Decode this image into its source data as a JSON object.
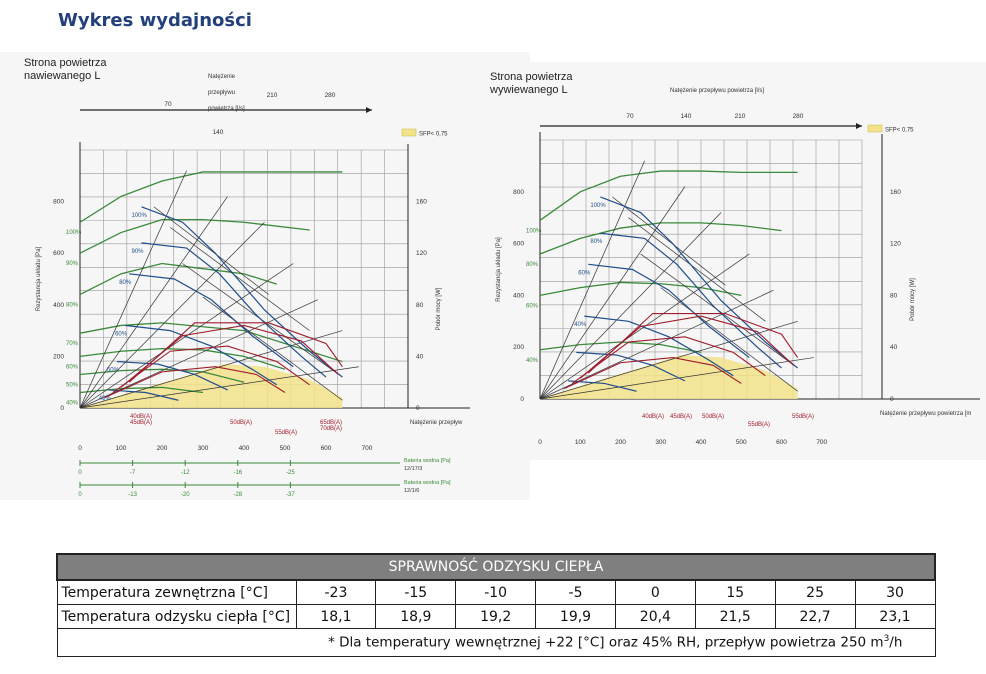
{
  "page_title": "Wykres wydajności",
  "colors": {
    "accent_heading": "#23407a",
    "green": "#3a8a3a",
    "blue": "#1f4e8c",
    "red": "#a01c2c",
    "dark": "#333333",
    "sfp_fill": "#f2e28a",
    "table_head_bg": "#7f7f7f"
  },
  "chart_data": [
    {
      "type": "line",
      "title_lines": [
        "Strona powietrza",
        "nawiewanego L"
      ],
      "top_axis": {
        "label_lines": [
          "Natężenie",
          "przepływu",
          "powietrza [l/s]"
        ],
        "ticks": [
          "70",
          "140",
          "210",
          "280"
        ]
      },
      "legend_sfp": "SFP< 0,75",
      "ylabel": "Rezystancja układu [Pa]",
      "y_ticks": [
        "0",
        "200",
        "400",
        "600",
        "800"
      ],
      "ylim": [
        0,
        1000
      ],
      "y2label": "Pobór mocy [W]",
      "y2_ticks": [
        "0",
        "40",
        "80",
        "120",
        "160"
      ],
      "xlabel": "Natężenie przepływ",
      "xlim": [
        0,
        800
      ],
      "x_ticks": [
        "0",
        "100",
        "200",
        "300",
        "400",
        "500",
        "600",
        "700"
      ],
      "green_labels": [
        "100%",
        "90%",
        "80%",
        "70%",
        "60%",
        "50%",
        "40%"
      ],
      "blue_labels": [
        "100%",
        "90%",
        "80%",
        "60%",
        "50%",
        "40%"
      ],
      "db_labels": [
        "40dB(A)",
        "45dB(A)",
        "50dB(A)",
        "55dB(A)",
        "65dB(A)",
        "70dB(A)"
      ],
      "heater_scales": [
        {
          "label": "Bateria wodna [Pa] 12/17/3",
          "ticks": [
            "0",
            "-7",
            "-12",
            "-16",
            "-25"
          ]
        },
        {
          "label": "Bateria wodna [Pa] 12/1/6",
          "ticks": [
            "0",
            "-13",
            "-20",
            "-28",
            "-37"
          ]
        }
      ],
      "series": [
        {
          "name": "100%",
          "x": [
            0,
            100,
            200,
            300,
            400,
            500,
            640
          ],
          "y": [
            720,
            820,
            880,
            915,
            915,
            915,
            915
          ]
        },
        {
          "name": "90%",
          "x": [
            0,
            100,
            200,
            300,
            400,
            560
          ],
          "y": [
            600,
            680,
            730,
            730,
            720,
            690
          ]
        },
        {
          "name": "80%",
          "x": [
            0,
            100,
            200,
            300,
            400,
            480
          ],
          "y": [
            440,
            520,
            560,
            540,
            520,
            480
          ]
        },
        {
          "name": "70%",
          "x": [
            0,
            100,
            200,
            300,
            400,
            500,
            640
          ],
          "y": [
            290,
            320,
            330,
            315,
            300,
            250,
            180
          ]
        },
        {
          "name": "60%",
          "x": [
            0,
            100,
            200,
            300,
            400,
            500
          ],
          "y": [
            200,
            220,
            230,
            225,
            200,
            150
          ]
        },
        {
          "name": "50%",
          "x": [
            0,
            100,
            200,
            300,
            400
          ],
          "y": [
            130,
            145,
            150,
            140,
            100
          ]
        },
        {
          "name": "40%",
          "x": [
            0,
            100,
            200,
            300
          ],
          "y": [
            60,
            75,
            80,
            60
          ]
        }
      ]
    },
    {
      "type": "line",
      "title_lines": [
        "Strona powietrza",
        "wywiewanego L"
      ],
      "top_axis": {
        "label_lines": [
          "Natężenie przepływu powietrza [l/s]"
        ],
        "ticks": [
          "70",
          "140",
          "210",
          "280"
        ]
      },
      "legend_sfp": "SFP< 0,75",
      "ylabel": "Rezystancja układu [Pa]",
      "y_ticks": [
        "0",
        "200",
        "400",
        "600",
        "800"
      ],
      "ylim": [
        0,
        1000
      ],
      "y2label": "Pobór mocy [W]",
      "y2_ticks": [
        "0",
        "40",
        "80",
        "120",
        "160"
      ],
      "xlabel": "Natężenie przepływu powietrza [m",
      "xlim": [
        0,
        800
      ],
      "x_ticks": [
        "0",
        "100",
        "200",
        "300",
        "400",
        "500",
        "600",
        "700"
      ],
      "green_labels": [
        "100%",
        "80%",
        "60%",
        "40%"
      ],
      "blue_labels": [
        "100%",
        "80%",
        "60%",
        "40%"
      ],
      "db_labels": [
        "40dB(A)",
        "45dB(A)",
        "50dB(A)",
        "55dB(A)",
        "55dB(A)"
      ],
      "series": [
        {
          "name": "100%",
          "x": [
            0,
            100,
            200,
            300,
            400,
            500,
            640
          ],
          "y": [
            690,
            800,
            860,
            880,
            880,
            875,
            875
          ]
        },
        {
          "name": "80%",
          "x": [
            0,
            100,
            200,
            300,
            400,
            500,
            600
          ],
          "y": [
            560,
            620,
            660,
            680,
            680,
            670,
            650
          ]
        },
        {
          "name": "60%",
          "x": [
            0,
            100,
            200,
            300,
            400,
            500
          ],
          "y": [
            400,
            430,
            450,
            445,
            430,
            400
          ]
        },
        {
          "name": "40%",
          "x": [
            0,
            100,
            200,
            300,
            400
          ],
          "y": [
            190,
            210,
            220,
            210,
            180
          ]
        }
      ]
    }
  ],
  "table": {
    "title": "SPRAWNOŚĆ ODZYSKU CIEPŁA",
    "row1_label": "Temperatura zewnętrzna [°C]",
    "row1_values": [
      "-23",
      "-15",
      "-10",
      "-5",
      "0",
      "15",
      "25",
      "30"
    ],
    "row2_label": "Temperatura odzysku ciepła [°C]",
    "row2_values": [
      "18,1",
      "18,9",
      "19,2",
      "19,9",
      "20,4",
      "21,5",
      "22,7",
      "23,1"
    ],
    "note_prefix": "* Dla temperatury wewnętrznej +22 [°C] oraz 45% RH, przepływ powietrza 250 m",
    "note_sup": "3",
    "note_suffix": "/h"
  }
}
